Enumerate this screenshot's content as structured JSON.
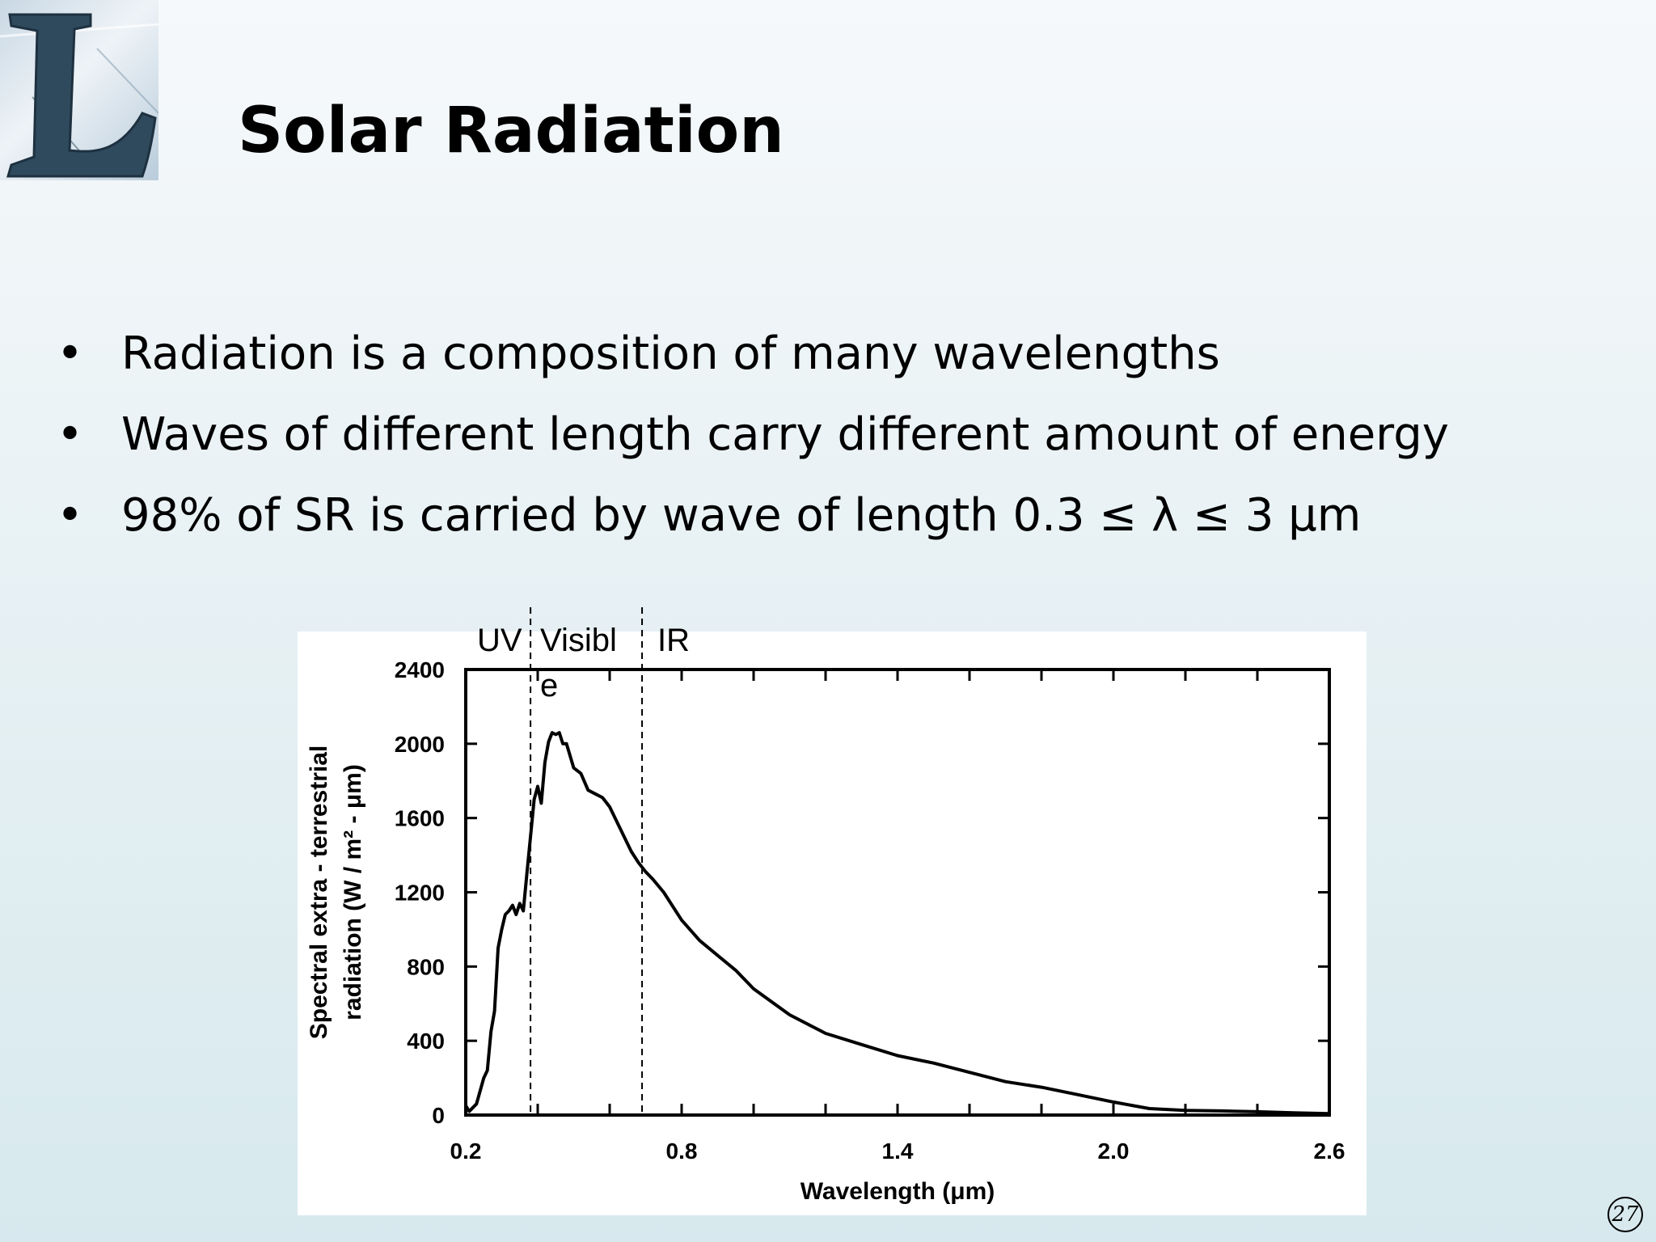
{
  "slide": {
    "title": "Solar Radiation",
    "logo_letter": "L",
    "page_number": "27",
    "bullets": [
      {
        "bullet": "•",
        "text": "Radiation is a composition of many wavelengths"
      },
      {
        "bullet": "•",
        "text": "Waves of different length carry different amount of energy"
      },
      {
        "bullet": "•",
        "text": "98% of SR is carried by wave of length 0.3 ≤ λ ≤ 3 μm"
      }
    ],
    "region_labels": {
      "uv": "UV",
      "visible_line1": "Visibl",
      "visible_line2": "e",
      "ir": "IR"
    }
  },
  "colors": {
    "line": "#000000",
    "chart_background": "#ffffff"
  },
  "chart_data": {
    "type": "line",
    "title": "",
    "xlabel": "Wavelength (μm)",
    "ylabel_line1": "Spectral extra - terrestrial",
    "ylabel_line2": "radiation  (W / m² - μm)",
    "xlim": [
      0.2,
      2.6
    ],
    "ylim": [
      0,
      2400
    ],
    "x_ticks": [
      0.2,
      0.8,
      1.4,
      2.0,
      2.6
    ],
    "x_tick_labels": [
      "0.2",
      "0.8",
      "1.4",
      "2.0",
      "2.6"
    ],
    "y_ticks": [
      0,
      400,
      800,
      1200,
      1600,
      2000,
      2400
    ],
    "y_tick_labels": [
      "0",
      "400",
      "800",
      "1200",
      "1600",
      "2000",
      "2400"
    ],
    "grid": false,
    "legend": "none",
    "dividers": [
      0.38,
      0.69
    ],
    "series": [
      {
        "x": [
          0.2,
          0.21,
          0.23,
          0.25,
          0.26,
          0.27,
          0.28,
          0.29,
          0.3,
          0.31,
          0.32,
          0.33,
          0.34,
          0.35,
          0.36,
          0.37,
          0.38,
          0.39,
          0.4,
          0.41,
          0.42,
          0.43,
          0.44,
          0.45,
          0.46,
          0.47,
          0.48,
          0.5,
          0.52,
          0.54,
          0.56,
          0.58,
          0.6,
          0.62,
          0.64,
          0.66,
          0.68,
          0.7,
          0.72,
          0.75,
          0.8,
          0.85,
          0.9,
          0.95,
          1.0,
          1.1,
          1.2,
          1.3,
          1.4,
          1.5,
          1.6,
          1.7,
          1.8,
          1.9,
          2.0,
          2.1,
          2.2,
          2.3,
          2.4,
          2.5,
          2.6
        ],
        "y": [
          50,
          20,
          60,
          200,
          240,
          450,
          560,
          900,
          1000,
          1080,
          1100,
          1130,
          1080,
          1140,
          1100,
          1300,
          1500,
          1700,
          1770,
          1680,
          1900,
          2010,
          2060,
          2050,
          2060,
          2000,
          2000,
          1870,
          1840,
          1750,
          1730,
          1710,
          1660,
          1580,
          1500,
          1420,
          1360,
          1310,
          1270,
          1200,
          1050,
          940,
          860,
          780,
          680,
          540,
          440,
          380,
          320,
          280,
          230,
          180,
          150,
          110,
          70,
          35,
          25,
          22,
          18,
          12,
          8
        ]
      }
    ]
  }
}
